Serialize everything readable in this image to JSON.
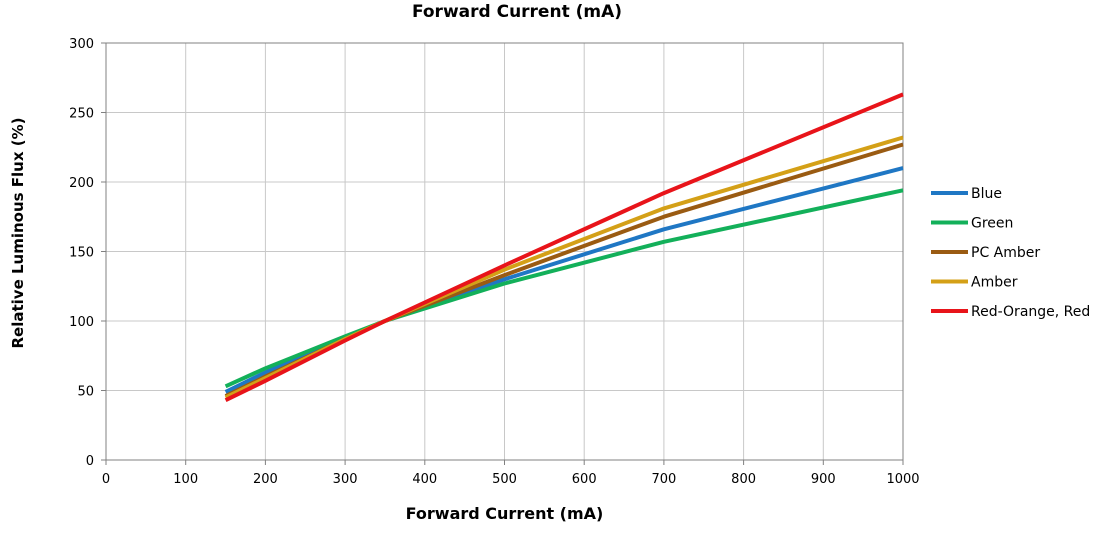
{
  "chart_data": {
    "type": "line",
    "title": "Forward Current (mA)",
    "xlabel": "Forward Current (mA)",
    "ylabel": "Relative Luminous Flux (%)",
    "xlim": [
      0,
      1000
    ],
    "ylim": [
      0,
      300
    ],
    "xticks": [
      0,
      100,
      200,
      300,
      400,
      500,
      600,
      700,
      800,
      900,
      1000
    ],
    "yticks": [
      0,
      50,
      100,
      150,
      200,
      250,
      300
    ],
    "grid": true,
    "legend_position": "right",
    "series": [
      {
        "name": "Blue",
        "color": "#1F77C4",
        "points": [
          [
            150,
            49
          ],
          [
            200,
            63
          ],
          [
            300,
            88
          ],
          [
            350,
            100
          ],
          [
            500,
            130
          ],
          [
            700,
            166
          ],
          [
            1000,
            210
          ]
        ]
      },
      {
        "name": "Green",
        "color": "#13B05A",
        "points": [
          [
            150,
            53
          ],
          [
            200,
            66
          ],
          [
            300,
            89
          ],
          [
            350,
            100
          ],
          [
            500,
            127
          ],
          [
            700,
            157
          ],
          [
            1000,
            194
          ]
        ]
      },
      {
        "name": "PC Amber",
        "color": "#9A5B12",
        "points": [
          [
            150,
            46
          ],
          [
            200,
            60
          ],
          [
            300,
            87
          ],
          [
            350,
            100
          ],
          [
            500,
            133
          ],
          [
            700,
            175
          ],
          [
            1000,
            227
          ]
        ]
      },
      {
        "name": "Amber",
        "color": "#D4A017",
        "points": [
          [
            150,
            45
          ],
          [
            200,
            59
          ],
          [
            300,
            87
          ],
          [
            350,
            100
          ],
          [
            500,
            137
          ],
          [
            700,
            181
          ],
          [
            1000,
            232
          ]
        ]
      },
      {
        "name": "Red-Orange, Red",
        "color": "#E8141A",
        "points": [
          [
            150,
            43
          ],
          [
            200,
            57
          ],
          [
            300,
            86
          ],
          [
            350,
            100
          ],
          [
            500,
            140
          ],
          [
            700,
            192
          ],
          [
            1000,
            263
          ]
        ]
      }
    ]
  }
}
